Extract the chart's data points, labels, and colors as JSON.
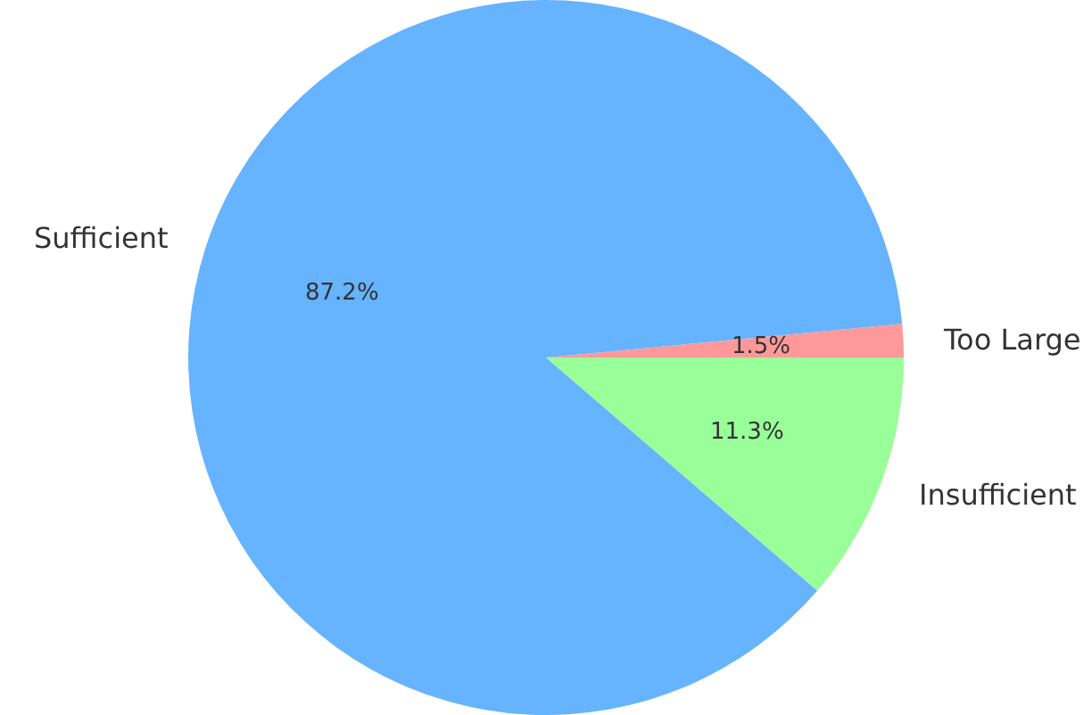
{
  "chart_data": {
    "type": "pie",
    "categories": [
      "Too Large",
      "Sufficient",
      "Insufficient"
    ],
    "values": [
      1.5,
      87.2,
      11.3
    ],
    "colors": [
      "#ff9999",
      "#66b3ff",
      "#99ff99"
    ],
    "value_labels": [
      "1.5%",
      "87.2%",
      "11.3%"
    ],
    "legend": false
  }
}
